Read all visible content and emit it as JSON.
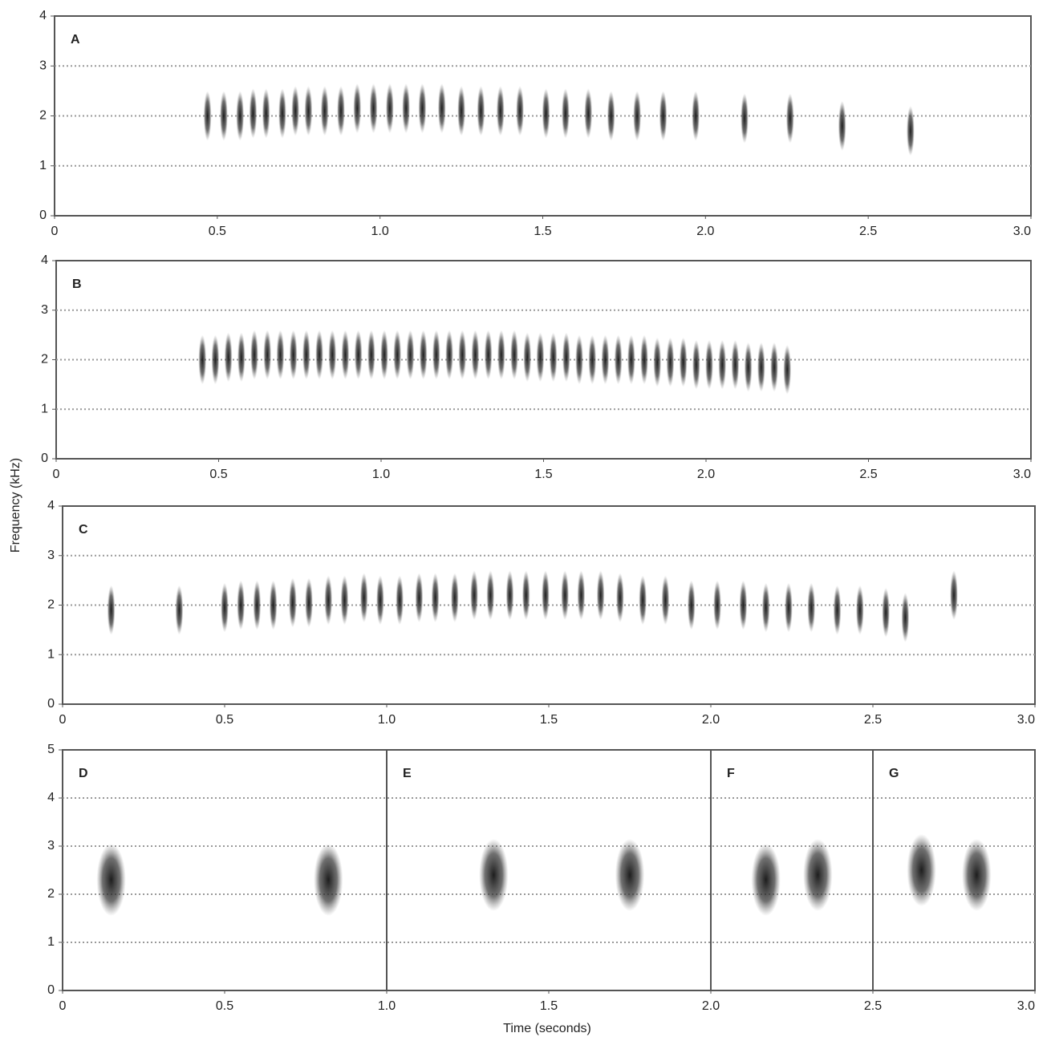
{
  "axis_labels": {
    "y": "Frequency (kHz)",
    "x": "Time (seconds)"
  },
  "chart_data": [
    {
      "type": "spectrogram",
      "sections": [
        {
          "label": "A",
          "start": 0
        }
      ],
      "xlim": [
        0,
        3
      ],
      "xticks": [
        0,
        0.5,
        {
          "value": 1,
          "label": "1.0"
        },
        1.5,
        {
          "value": 2,
          "label": "2.0"
        },
        2.5,
        {
          "value": 3,
          "label": "3.0"
        }
      ],
      "ylim": [
        0,
        4
      ],
      "yticks": [
        0,
        1,
        2,
        3,
        4
      ],
      "grid": true,
      "notes": {
        "x": [
          0.47,
          0.52,
          0.57,
          0.61,
          0.65,
          0.7,
          0.74,
          0.78,
          0.83,
          0.88,
          0.93,
          0.98,
          1.03,
          1.08,
          1.13,
          1.19,
          1.25,
          1.31,
          1.37,
          1.43,
          1.51,
          1.57,
          1.64,
          1.71,
          1.79,
          1.87,
          1.97,
          2.12,
          2.26,
          2.42,
          2.63
        ],
        "y": [
          2.0,
          2.0,
          2.0,
          2.05,
          2.05,
          2.05,
          2.1,
          2.1,
          2.1,
          2.1,
          2.15,
          2.15,
          2.15,
          2.15,
          2.15,
          2.15,
          2.1,
          2.1,
          2.1,
          2.1,
          2.05,
          2.05,
          2.05,
          2.0,
          2.0,
          2.0,
          2.0,
          1.95,
          1.95,
          1.8,
          1.7
        ]
      }
    },
    {
      "type": "spectrogram",
      "sections": [
        {
          "label": "B",
          "start": 0
        }
      ],
      "xlim": [
        0,
        3
      ],
      "xticks": [
        0,
        0.5,
        {
          "value": 1,
          "label": "1.0"
        },
        1.5,
        {
          "value": 2,
          "label": "2.0"
        },
        2.5,
        {
          "value": 3,
          "label": "3.0"
        }
      ],
      "ylim": [
        0,
        4
      ],
      "yticks": [
        0,
        1,
        2,
        3,
        4
      ],
      "grid": true,
      "notes": {
        "x": [
          0.45,
          0.49,
          0.53,
          0.57,
          0.61,
          0.65,
          0.69,
          0.73,
          0.77,
          0.81,
          0.85,
          0.89,
          0.93,
          0.97,
          1.01,
          1.05,
          1.09,
          1.13,
          1.17,
          1.21,
          1.25,
          1.29,
          1.33,
          1.37,
          1.41,
          1.45,
          1.49,
          1.53,
          1.57,
          1.61,
          1.65,
          1.69,
          1.73,
          1.77,
          1.81,
          1.85,
          1.89,
          1.93,
          1.97,
          2.01,
          2.05,
          2.09,
          2.13,
          2.17,
          2.21,
          2.25
        ],
        "y": [
          2.0,
          2.0,
          2.05,
          2.05,
          2.1,
          2.1,
          2.1,
          2.1,
          2.1,
          2.1,
          2.1,
          2.1,
          2.1,
          2.1,
          2.1,
          2.1,
          2.1,
          2.1,
          2.1,
          2.1,
          2.1,
          2.1,
          2.1,
          2.1,
          2.1,
          2.05,
          2.05,
          2.05,
          2.05,
          2.0,
          2.0,
          2.0,
          2.0,
          2.0,
          2.0,
          1.95,
          1.95,
          1.95,
          1.9,
          1.9,
          1.9,
          1.9,
          1.85,
          1.85,
          1.85,
          1.8
        ]
      }
    },
    {
      "type": "spectrogram",
      "sections": [
        {
          "label": "C",
          "start": 0
        }
      ],
      "xlim": [
        0,
        3
      ],
      "xticks": [
        0,
        0.5,
        {
          "value": 1,
          "label": "1.0"
        },
        1.5,
        {
          "value": 2,
          "label": "2.0"
        },
        2.5,
        {
          "value": 3,
          "label": "3.0"
        }
      ],
      "ylim": [
        0,
        4
      ],
      "yticks": [
        0,
        1,
        2,
        3,
        4
      ],
      "grid": true,
      "notes": {
        "x": [
          0.15,
          0.36,
          0.5,
          0.55,
          0.6,
          0.65,
          0.71,
          0.76,
          0.82,
          0.87,
          0.93,
          0.98,
          1.04,
          1.1,
          1.15,
          1.21,
          1.27,
          1.32,
          1.38,
          1.43,
          1.49,
          1.55,
          1.6,
          1.66,
          1.72,
          1.79,
          1.86,
          1.94,
          2.02,
          2.1,
          2.17,
          2.24,
          2.31,
          2.39,
          2.46,
          2.54,
          2.6,
          2.75
        ],
        "y": [
          1.9,
          1.9,
          1.95,
          2.0,
          2.0,
          2.0,
          2.05,
          2.05,
          2.1,
          2.1,
          2.15,
          2.1,
          2.1,
          2.15,
          2.15,
          2.15,
          2.2,
          2.2,
          2.2,
          2.2,
          2.2,
          2.2,
          2.2,
          2.2,
          2.15,
          2.1,
          2.1,
          2.0,
          2.0,
          2.0,
          1.95,
          1.95,
          1.95,
          1.9,
          1.9,
          1.85,
          1.75,
          2.2
        ]
      }
    },
    {
      "type": "spectrogram",
      "sections": [
        {
          "label": "D",
          "start": 0
        },
        {
          "label": "E",
          "start": 1
        },
        {
          "label": "F",
          "start": 2
        },
        {
          "label": "G",
          "start": 2.5
        }
      ],
      "xlim": [
        0,
        3
      ],
      "xticks": [
        0,
        0.5,
        {
          "value": 1,
          "label": "1.0"
        },
        1.5,
        {
          "value": 2,
          "label": "2.0"
        },
        2.5,
        {
          "value": 3,
          "label": "3.0"
        }
      ],
      "ylim": [
        0,
        5
      ],
      "yticks": [
        0,
        1,
        2,
        3,
        4,
        5
      ],
      "grid": true,
      "notes": {
        "x": [
          0.15,
          0.82,
          1.33,
          1.75,
          2.17,
          2.33,
          2.65,
          2.82
        ],
        "y": [
          2.3,
          2.3,
          2.4,
          2.4,
          2.3,
          2.4,
          2.5,
          2.4
        ]
      }
    }
  ]
}
